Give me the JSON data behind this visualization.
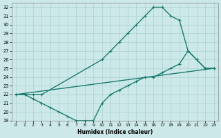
{
  "xlabel": "Humidex (Indice chaleur)",
  "bg_color": "#cce8e8",
  "line_color": "#1a7a6e",
  "grid_color": "#b0d4d4",
  "xlim": [
    -0.5,
    23.5
  ],
  "ylim": [
    19,
    32.5
  ],
  "xticks": [
    0,
    1,
    2,
    3,
    4,
    5,
    6,
    7,
    8,
    9,
    10,
    11,
    12,
    13,
    14,
    15,
    16,
    17,
    18,
    19,
    20,
    21,
    22,
    23
  ],
  "yticks": [
    19,
    20,
    21,
    22,
    23,
    24,
    25,
    26,
    27,
    28,
    29,
    30,
    31,
    32
  ],
  "line1_x": [
    0,
    1,
    2,
    3,
    10,
    11,
    12,
    13,
    14,
    15,
    16,
    17,
    18,
    19,
    20,
    21,
    22,
    23
  ],
  "line1_y": [
    22,
    22,
    22,
    22,
    26,
    27,
    28,
    29,
    30,
    31,
    32,
    32,
    31,
    30.5,
    27,
    26,
    25,
    25
  ],
  "line2_x": [
    0,
    23
  ],
  "line2_y": [
    22,
    25
  ],
  "line3_x": [
    0,
    1,
    2,
    3,
    4,
    5,
    6,
    7,
    8,
    9,
    10,
    11,
    12,
    13,
    14,
    15,
    16,
    17,
    18,
    19,
    20,
    21,
    22,
    23
  ],
  "line3_y": [
    22,
    22,
    21.5,
    21,
    20.5,
    20,
    19.5,
    19,
    19,
    19,
    21,
    22,
    22.5,
    23,
    23.5,
    24,
    24,
    24.5,
    25,
    25.5,
    27,
    26,
    25,
    25
  ],
  "marker": "+",
  "markersize": 3.5,
  "linewidth": 1.0
}
